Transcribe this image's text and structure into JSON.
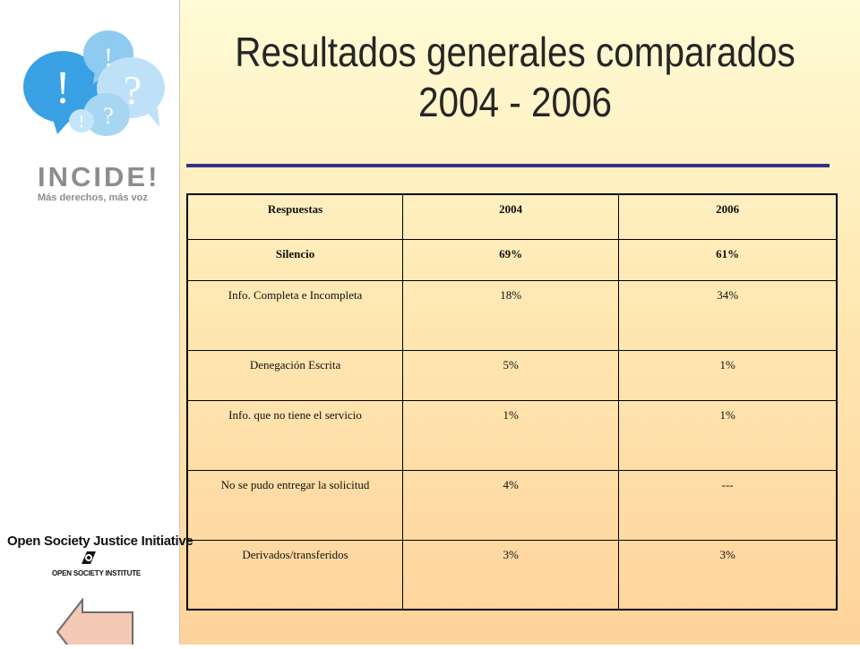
{
  "slide": {
    "title_line1": "Resultados generales comparados",
    "title_line2": "2004 - 2006",
    "accent_color": "#33338a"
  },
  "logos": {
    "incide": {
      "bubble_marks": [
        "!",
        "!",
        "?",
        "!",
        "?"
      ],
      "wordmark": "INCIDE!",
      "tagline": "Más derechos, más voz",
      "icon": "speech-bubbles-icon"
    },
    "osji": {
      "title": "Open Society Justice Initiative",
      "subtitle": "OPEN SOCIETY INSTITUTE",
      "icon": "osi-emblem-icon"
    }
  },
  "navigation": {
    "back_icon": "left-arrow-icon"
  },
  "table": {
    "headers": [
      "Respuestas",
      "2004",
      "2006"
    ],
    "rows": [
      {
        "label": "Silencio",
        "v2004": "69%",
        "v2006": "61%"
      },
      {
        "label": "Info. Completa e Incompleta",
        "v2004": "18%",
        "v2006": "34%"
      },
      {
        "label": "Denegación Escrita",
        "v2004": "5%",
        "v2006": "1%"
      },
      {
        "label": "Info. que no tiene el servicio",
        "v2004": "1%",
        "v2006": "1%"
      },
      {
        "label": "No se pudo entregar la solicitud",
        "v2004": "4%",
        "v2006": "---"
      },
      {
        "label": "Derivados/transferidos",
        "v2004": "3%",
        "v2006": "3%"
      }
    ]
  }
}
